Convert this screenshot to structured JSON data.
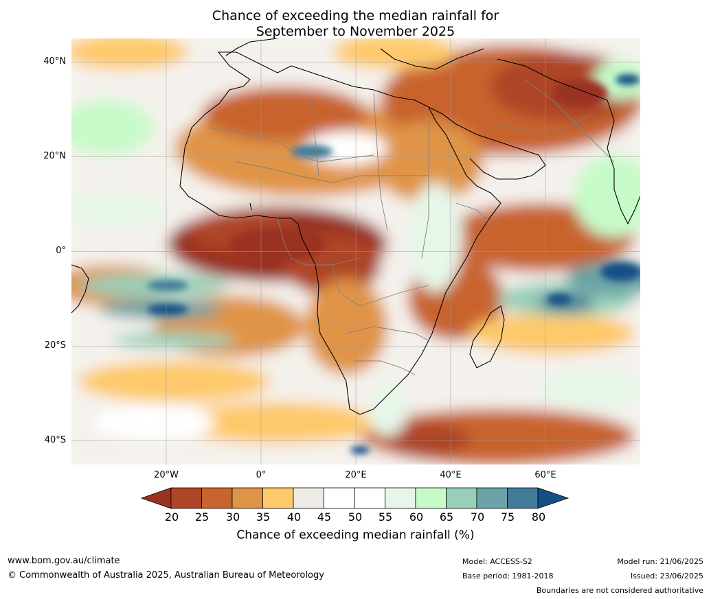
{
  "title": {
    "line1": "Chance of exceeding the median rainfall for",
    "line2": "September to November 2025"
  },
  "map": {
    "lat_labels": [
      "40°N",
      "20°N",
      "0°",
      "20°S",
      "40°S"
    ],
    "lon_labels": [
      "20°W",
      "0°",
      "20°E",
      "40°E",
      "60°E"
    ],
    "lat_values": [
      40,
      20,
      0,
      -20,
      -40
    ],
    "lon_values": [
      -20,
      0,
      20,
      40,
      60
    ],
    "extent": {
      "lon": [
        -40,
        80
      ],
      "lat": [
        -45,
        45
      ]
    }
  },
  "colorbar": {
    "ticks": [
      "20",
      "25",
      "30",
      "35",
      "40",
      "45",
      "50",
      "55",
      "60",
      "65",
      "70",
      "75",
      "80"
    ],
    "colors": [
      "#9a3220",
      "#ae4526",
      "#c8642e",
      "#e09447",
      "#fec96b",
      "#eeeae4",
      "#ffffff",
      "#ffffff",
      "#e6f6e8",
      "#c6fbc9",
      "#98cfb8",
      "#6ba3a6",
      "#437c99",
      "#164f85"
    ],
    "label": "Chance of exceeding median rainfall (%)"
  },
  "footer": {
    "url": "www.bom.gov.au/climate",
    "copyright": "© Commonwealth of Australia 2025, Australian Bureau of Meteorology",
    "model": "Model: ACCESS-S2",
    "base_period": "Base period: 1981-2018",
    "model_run": "Model run: 21/06/2025",
    "issued": "Issued: 23/06/2025",
    "disclaimer": "Boundaries are not considered authoritative"
  }
}
